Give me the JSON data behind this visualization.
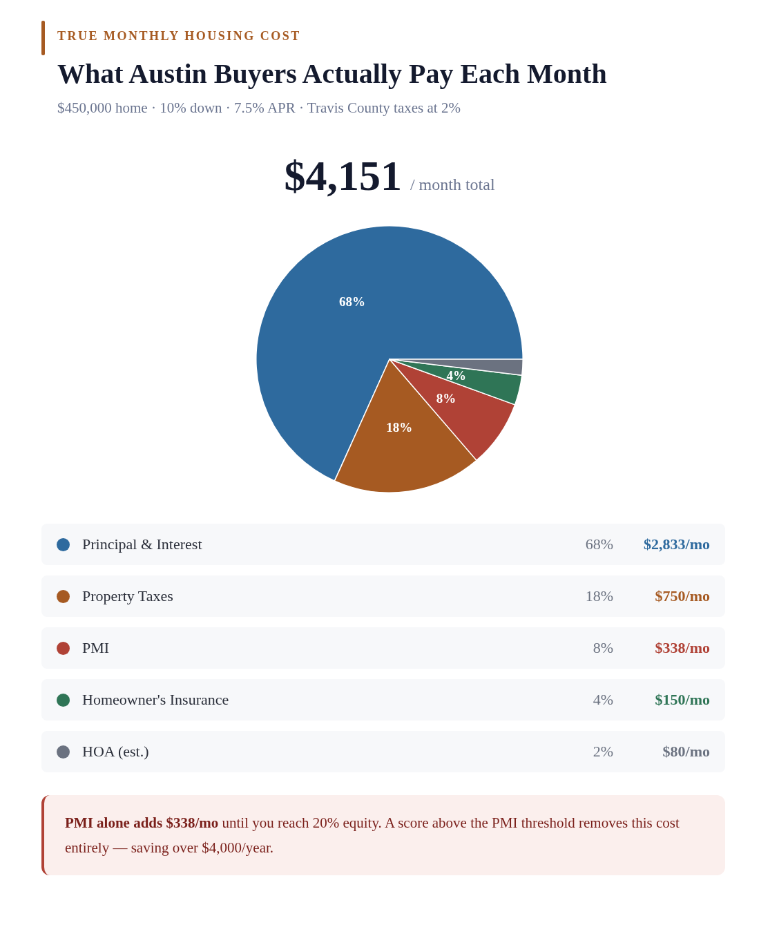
{
  "chart_data": {
    "type": "pie",
    "title": "What Austin Buyers Actually Pay Each Month",
    "subtitle": "$450,000 home · 10% down · 7.5% APR · Travis County taxes at 2%",
    "categories": [
      "Principal & Interest",
      "Property Taxes",
      "PMI",
      "Homeowner's Insurance",
      "HOA (est.)"
    ],
    "values": [
      2833,
      750,
      338,
      150,
      80
    ],
    "colors": [
      "#2e6a9e",
      "#a65a22",
      "#b04236",
      "#2f7556",
      "#6b7280"
    ],
    "value_labels": [
      "$2,833/mo",
      "$750/mo",
      "$338/mo",
      "$150/mo",
      "$80/mo"
    ],
    "legend": "bottom",
    "annotations": [
      "TRUE MONTHLY HOUSING COST",
      "$4,151",
      "/ month total",
      "PMI alone adds $338/mo",
      "until you reach 20% equity. A score above the PMI threshold removes this cost entirely — saving over $4,000/year.",
      {
        "text": "68%",
        "x": "Principal & Interest"
      },
      {
        "text": "18%",
        "x": "Property Taxes"
      },
      {
        "text": "8%",
        "x": "PMI"
      },
      {
        "text": "4%",
        "x": "Homeowner's Insurance"
      },
      {
        "text": "2%",
        "x": "HOA (est.)"
      }
    ]
  }
}
